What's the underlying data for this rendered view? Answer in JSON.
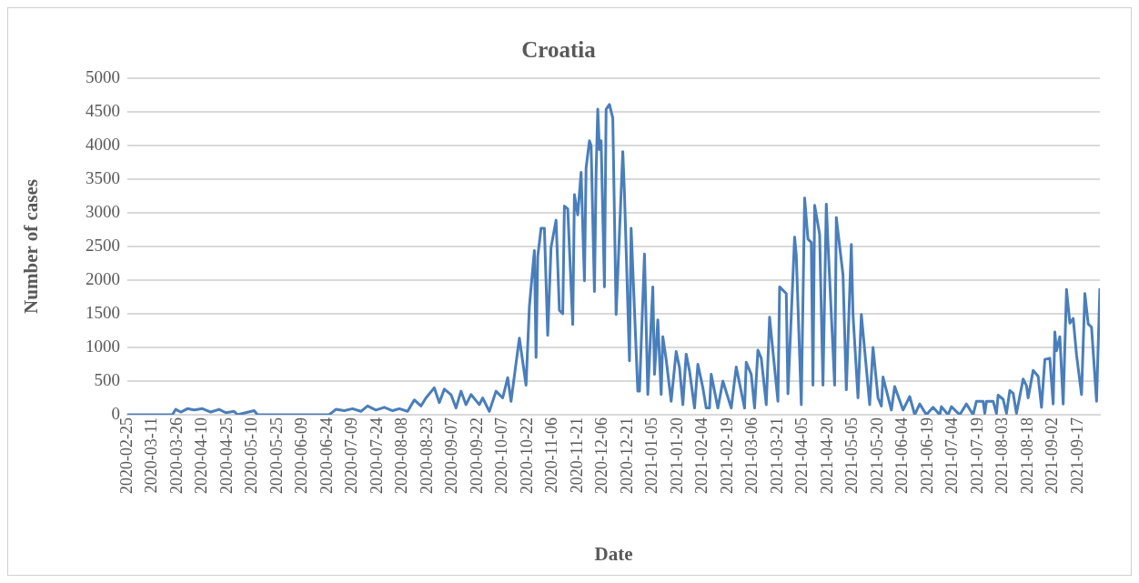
{
  "chart_data": {
    "type": "line",
    "title": "Croatia",
    "xlabel": "Date",
    "ylabel": "Number of cases",
    "x": [
      "2020-02-25",
      "2020-03-23",
      "2020-03-25",
      "2020-03-28",
      "2020-04-01",
      "2020-04-05",
      "2020-04-10",
      "2020-04-15",
      "2020-04-20",
      "2020-04-24",
      "2020-04-29",
      "2020-05-01",
      "2020-05-11",
      "2020-05-13",
      "2020-06-25",
      "2020-06-29",
      "2020-07-04",
      "2020-07-09",
      "2020-07-14",
      "2020-07-18",
      "2020-07-23",
      "2020-07-28",
      "2020-08-02",
      "2020-08-06",
      "2020-08-11",
      "2020-08-15",
      "2020-08-19",
      "2020-08-22",
      "2020-08-27",
      "2020-08-30",
      "2020-09-02",
      "2020-09-06",
      "2020-09-09",
      "2020-09-12",
      "2020-09-15",
      "2020-09-18",
      "2020-09-23",
      "2020-09-25",
      "2020-09-29",
      "2020-10-03",
      "2020-10-07",
      "2020-10-10",
      "2020-10-12",
      "2020-10-17",
      "2020-10-21",
      "2020-10-23",
      "2020-10-26",
      "2020-10-27",
      "2020-10-28",
      "2020-10-30",
      "2020-11-01",
      "2020-11-03",
      "2020-11-05",
      "2020-11-08",
      "2020-11-10",
      "2020-11-12",
      "2020-11-13",
      "2020-11-15",
      "2020-11-18",
      "2020-11-19",
      "2020-11-21",
      "2020-11-23",
      "2020-11-25",
      "2020-11-26",
      "2020-11-28",
      "2020-11-29",
      "2020-12-01",
      "2020-12-02",
      "2020-12-03",
      "2020-12-04",
      "2020-12-05",
      "2020-12-07",
      "2020-12-08",
      "2020-12-10",
      "2020-12-12",
      "2020-12-14",
      "2020-12-18",
      "2020-12-19",
      "2020-12-22",
      "2020-12-23",
      "2020-12-27",
      "2020-12-28",
      "2020-12-31",
      "2021-01-02",
      "2021-01-05",
      "2021-01-06",
      "2021-01-08",
      "2021-01-10",
      "2021-01-11",
      "2021-01-13",
      "2021-01-16",
      "2021-01-19",
      "2021-01-21",
      "2021-01-23",
      "2021-01-25",
      "2021-01-27",
      "2021-01-30",
      "2021-02-01",
      "2021-02-04",
      "2021-02-06",
      "2021-02-08",
      "2021-02-09",
      "2021-02-13",
      "2021-02-16",
      "2021-02-21",
      "2021-02-24",
      "2021-03-01",
      "2021-03-02",
      "2021-03-05",
      "2021-03-07",
      "2021-03-09",
      "2021-03-11",
      "2021-03-14",
      "2021-03-16",
      "2021-03-17",
      "2021-03-21",
      "2021-03-22",
      "2021-03-26",
      "2021-03-27",
      "2021-03-31",
      "2021-04-01",
      "2021-04-04",
      "2021-04-06",
      "2021-04-08",
      "2021-04-10",
      "2021-04-11",
      "2021-04-12",
      "2021-04-15",
      "2021-04-17",
      "2021-04-19",
      "2021-04-20",
      "2021-04-24",
      "2021-04-25",
      "2021-04-29",
      "2021-05-01",
      "2021-05-04",
      "2021-05-05",
      "2021-05-08",
      "2021-05-10",
      "2021-05-12",
      "2021-05-15",
      "2021-05-17",
      "2021-05-20",
      "2021-05-22",
      "2021-05-23",
      "2021-05-28",
      "2021-05-30",
      "2021-06-04",
      "2021-06-08",
      "2021-06-11",
      "2021-06-14",
      "2021-06-18",
      "2021-06-22",
      "2021-06-26",
      "2021-06-27",
      "2021-07-01",
      "2021-07-03",
      "2021-07-08",
      "2021-07-12",
      "2021-07-16",
      "2021-07-18",
      "2021-07-22",
      "2021-07-23",
      "2021-07-24",
      "2021-07-28",
      "2021-07-30",
      "2021-07-31",
      "2021-08-03",
      "2021-08-05",
      "2021-08-07",
      "2021-08-09",
      "2021-08-11",
      "2021-08-15",
      "2021-08-17",
      "2021-08-18",
      "2021-08-21",
      "2021-08-24",
      "2021-08-26",
      "2021-08-28",
      "2021-08-31",
      "2021-09-02",
      "2021-09-03",
      "2021-09-04",
      "2021-09-06",
      "2021-09-08",
      "2021-09-10",
      "2021-09-12",
      "2021-09-14",
      "2021-09-16",
      "2021-09-19",
      "2021-09-21",
      "2021-09-23",
      "2021-09-25",
      "2021-09-28",
      "2021-09-30"
    ],
    "series": [
      {
        "color": "#4a7ebb",
        "values": [
          0,
          0,
          80,
          40,
          90,
          70,
          90,
          40,
          80,
          30,
          50,
          0,
          60,
          0,
          0,
          80,
          60,
          90,
          50,
          130,
          70,
          110,
          60,
          90,
          50,
          220,
          130,
          250,
          400,
          180,
          380,
          300,
          100,
          350,
          150,
          300,
          150,
          250,
          50,
          350,
          250,
          550,
          200,
          1140,
          440,
          1610,
          2440,
          850,
          2350,
          2770,
          2770,
          1180,
          2490,
          2890,
          1550,
          1500,
          3100,
          3060,
          1340,
          3270,
          2970,
          3600,
          1990,
          3670,
          4070,
          4000,
          1830,
          3600,
          4540,
          3940,
          4070,
          1900,
          4540,
          4610,
          4410,
          1490,
          3910,
          3290,
          800,
          2770,
          350,
          350,
          2390,
          300,
          1900,
          600,
          1410,
          300,
          1160,
          820,
          200,
          940,
          700,
          150,
          900,
          650,
          100,
          750,
          400,
          100,
          100,
          600,
          100,
          500,
          100,
          710,
          100,
          780,
          600,
          100,
          960,
          840,
          150,
          1450,
          1190,
          200,
          1900,
          1800,
          310,
          2640,
          2370,
          150,
          3220,
          2610,
          2560,
          440,
          3110,
          2680,
          440,
          3130,
          2550,
          440,
          2930,
          2080,
          370,
          2530,
          1490,
          250,
          1490,
          960,
          150,
          1000,
          250,
          130,
          560,
          70,
          420,
          70,
          270,
          0,
          160,
          0,
          110,
          0,
          120,
          0,
          120,
          0,
          160,
          0,
          200,
          200,
          20,
          200,
          200,
          20,
          290,
          230,
          20,
          360,
          320,
          20,
          530,
          430,
          250,
          660,
          570,
          110,
          820,
          840,
          160,
          1230,
          950,
          1160,
          160,
          1860,
          1360,
          1430,
          890,
          300,
          1800,
          1350,
          1300,
          200,
          1880
        ]
      }
    ],
    "xlim": [
      "2020-02-25",
      "2021-09-30"
    ],
    "xticks": [
      "2020-02-25",
      "2020-03-11",
      "2020-03-26",
      "2020-04-10",
      "2020-04-25",
      "2020-05-10",
      "2020-05-25",
      "2020-06-09",
      "2020-06-24",
      "2020-07-09",
      "2020-07-24",
      "2020-08-08",
      "2020-08-23",
      "2020-09-07",
      "2020-09-22",
      "2020-10-07",
      "2020-10-22",
      "2020-11-06",
      "2020-11-21",
      "2020-12-06",
      "2020-12-21",
      "2021-01-05",
      "2021-01-20",
      "2021-02-04",
      "2021-02-19",
      "2021-03-06",
      "2021-03-21",
      "2021-04-05",
      "2021-04-20",
      "2021-05-05",
      "2021-05-20",
      "2021-06-04",
      "2021-06-19",
      "2021-07-04",
      "2021-07-19",
      "2021-08-03",
      "2021-08-18",
      "2021-09-02",
      "2021-09-17"
    ],
    "ylim": [
      0,
      5000
    ],
    "yticks": [
      0,
      500,
      1000,
      1500,
      2000,
      2500,
      3000,
      3500,
      4000,
      4500,
      5000
    ],
    "grid": "y",
    "marker": "none",
    "line_style": "solid"
  }
}
